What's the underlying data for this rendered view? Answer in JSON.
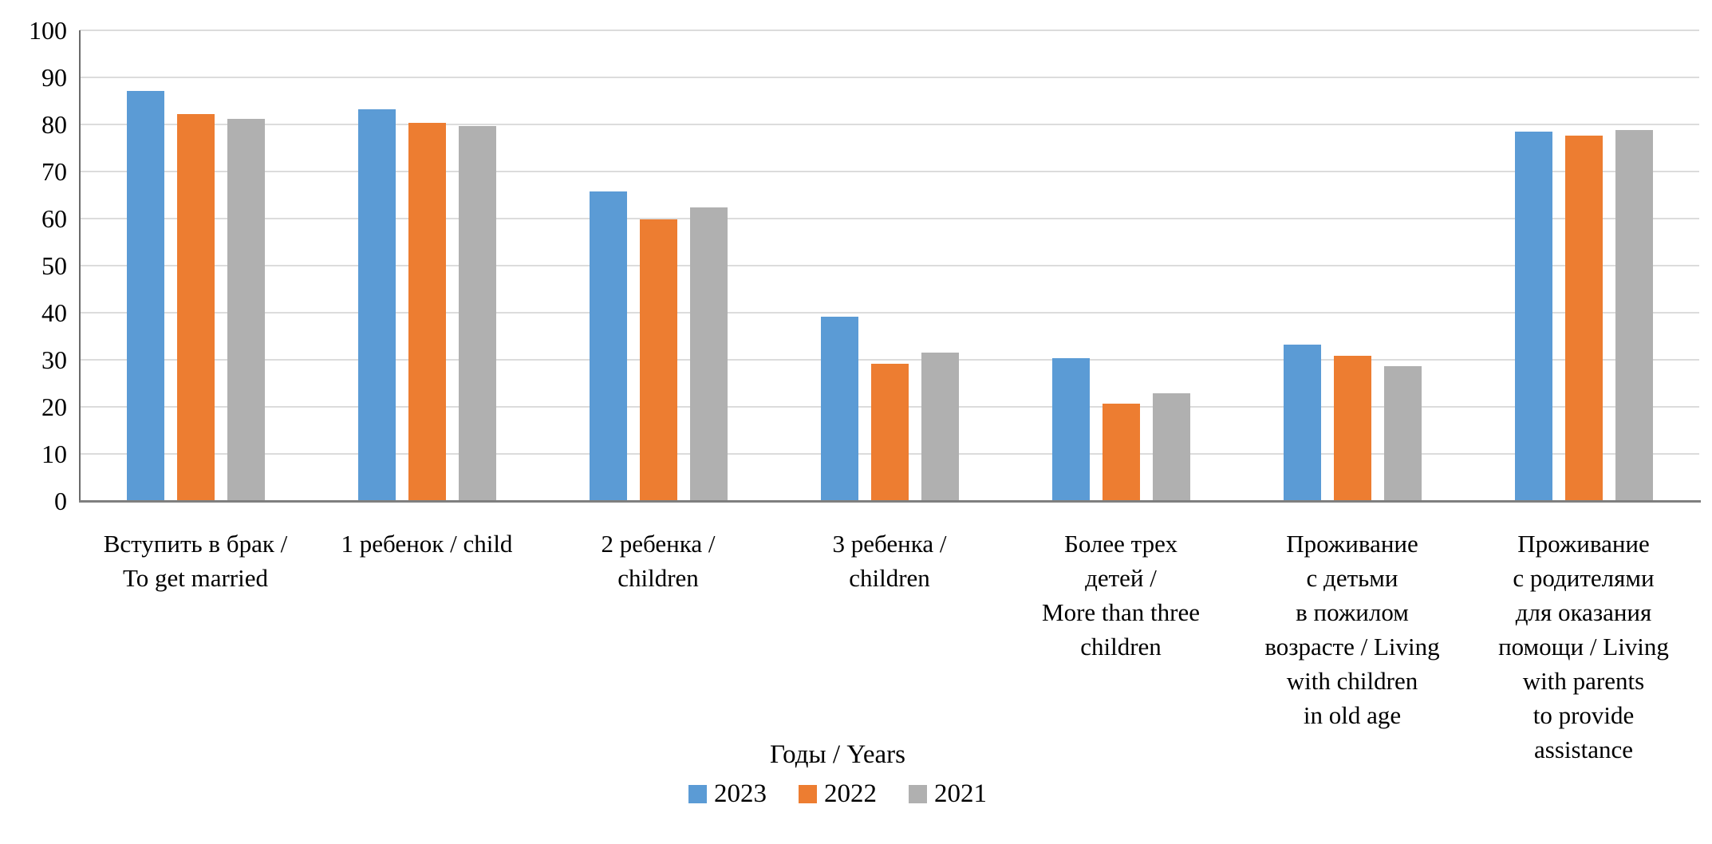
{
  "chart_data": {
    "type": "bar",
    "title": "",
    "legend_title": "Годы / Years",
    "legend_position": "bottom",
    "grid": true,
    "ylim": [
      0,
      100
    ],
    "ytick_step": 10,
    "categories": [
      "Вступить в брак /\nTo get married",
      "1 ребенок / child",
      "2 ребенка /\nchildren",
      "3 ребенка /\nchildren",
      "Более трех\nдетей /\nMore than three\nchildren",
      "Проживание\nс детьми\nв пожилом\nвозрасте / Living\nwith children\nin old age",
      "Проживание\nс родителями\nдля оказания\nпомощи / Living\nwith parents\nto provide\nassistance"
    ],
    "series": [
      {
        "name": "2023",
        "color": "#5B9BD5",
        "values": [
          87.1,
          83.3,
          65.7,
          39.2,
          30.4,
          33.2,
          78.4
        ]
      },
      {
        "name": "2022",
        "color": "#ED7D31",
        "values": [
          82.2,
          80.4,
          59.8,
          29.2,
          20.6,
          30.8,
          77.7
        ]
      },
      {
        "name": "2021",
        "color": "#B0B0B0",
        "values": [
          81.2,
          79.6,
          62.3,
          31.6,
          22.8,
          28.6,
          78.9
        ]
      }
    ],
    "colors": {
      "gridline": "#DCDCDC",
      "axis": "#7f7f7f"
    }
  }
}
